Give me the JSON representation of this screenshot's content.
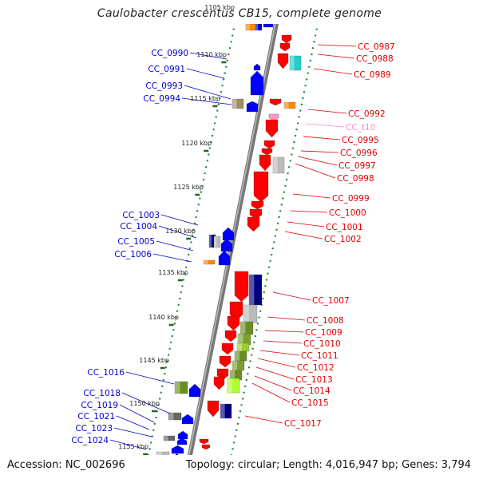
{
  "title": "Caulobacter crescentus CB15, complete genome",
  "footer": {
    "accession": "Accession: NC_002696",
    "summary": "Topology: circular; Length: 4,016,947 bp; Genes: 3,794"
  },
  "colors": {
    "forward_label": "#0000cc",
    "reverse_label": "#dd0000",
    "rna_label": "#ff88cc",
    "backbone": "#888888",
    "tick": "#226622"
  },
  "kbp_labels": [
    "1105 kbp",
    "1110 kbp",
    "1115 kbp",
    "1120 kbp",
    "1125 kbp",
    "1130 kbp",
    "1135 kbp",
    "1140 kbp",
    "1145 kbp",
    "1150 kbp",
    "1155 kbp"
  ],
  "left_genes": [
    "CC_0990",
    "CC_0991",
    "CC_0993",
    "CC_0994",
    "CC_1003",
    "CC_1004",
    "CC_1005",
    "CC_1006",
    "CC_1016",
    "CC_1018",
    "CC_1019",
    "CC_1021",
    "CC_1023",
    "CC_1024"
  ],
  "right_genes": [
    "CC_0987",
    "CC_0988",
    "CC_0989",
    "CC_0992",
    "CC_t10",
    "CC_0995",
    "CC_0996",
    "CC_0997",
    "CC_0998",
    "CC_0999",
    "CC_1000",
    "CC_1001",
    "CC_1002",
    "CC_1007",
    "CC_1008",
    "CC_1009",
    "CC_1010",
    "CC_1011",
    "CC_1012",
    "CC_1013",
    "CC_1014",
    "CC_1015",
    "CC_1017"
  ]
}
